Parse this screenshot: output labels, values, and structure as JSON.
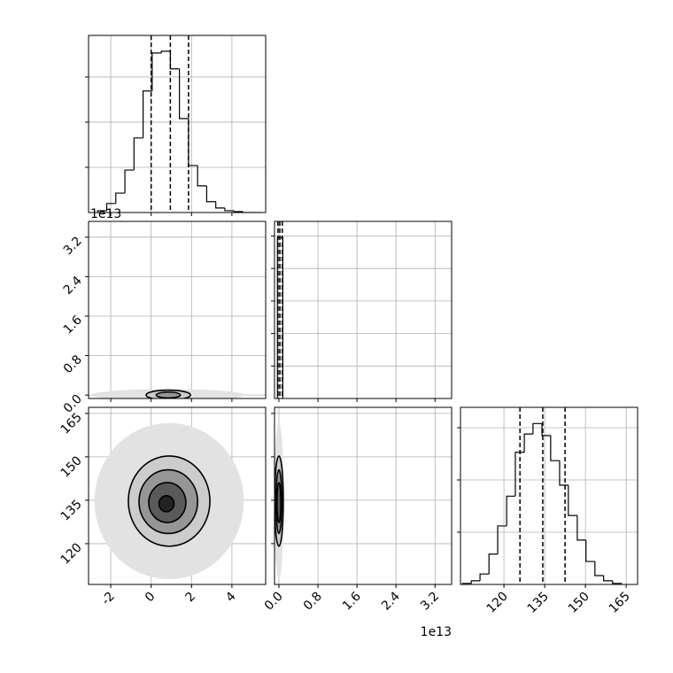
{
  "chart_data": [
    {
      "type": "histogram",
      "xlim": [
        -3.1,
        5.67
      ],
      "xticks": [
        -2,
        0,
        2,
        4
      ],
      "ylim": [
        0,
        3.92
      ],
      "yticks": [
        1,
        2,
        3
      ],
      "bins": [
        -2.65,
        -2.2,
        -1.75,
        -1.3,
        -0.85,
        -0.4,
        0.05,
        0.5,
        0.95,
        1.4,
        1.85,
        2.3,
        2.75,
        3.2,
        3.65,
        4.1,
        4.55,
        5.0,
        5.45
      ],
      "values": [
        0.04,
        0.2,
        0.43,
        0.94,
        1.65,
        2.69,
        3.53,
        3.57,
        3.18,
        2.08,
        1.04,
        0.59,
        0.24,
        0.1,
        0.04,
        0.02,
        0,
        0
      ],
      "quantiles": [
        0.0,
        0.95,
        1.85
      ],
      "color": "#000000"
    },
    {
      "type": "contour",
      "xlim": [
        -3.1,
        5.67
      ],
      "xticks": [
        -2,
        0,
        2,
        4
      ],
      "ylim": [
        -0.07,
        3.52
      ],
      "yticks": [
        {
          "value": 0,
          "label": "0.0"
        },
        0.8,
        1.6,
        2.4,
        3.2
      ],
      "yoffset": "1e13",
      "cloud": {
        "cx": 0.85,
        "cy": 0.0,
        "rx": 3.8,
        "ry": 0.12
      },
      "contours": [
        {
          "cx": 0.85,
          "cy": 0.0,
          "rx": 1.1,
          "ry": 0.1
        },
        {
          "cx": 0.85,
          "cy": 0.0,
          "rx": 0.6,
          "ry": 0.06
        }
      ]
    },
    {
      "type": "histogram",
      "xlim": [
        -0.09,
        3.54
      ],
      "xticks": [
        {
          "value": 0,
          "label": "0.0"
        },
        0.8,
        1.6,
        2.4,
        3.2
      ],
      "ylim": [
        0,
        5.45
      ],
      "yticks": [
        1,
        2,
        3,
        4,
        5
      ],
      "bins": [
        -0.03,
        0.08
      ],
      "values": [
        4.95
      ],
      "quantiles": [
        -0.02,
        0.02,
        0.07
      ],
      "color": "#000000"
    },
    {
      "type": "contour",
      "xlim": [
        -3.1,
        5.67
      ],
      "xticks": [
        -2,
        0,
        2,
        4
      ],
      "ylim": [
        105.9,
        167.1
      ],
      "yticks": [
        120,
        135,
        150,
        165
      ],
      "cloud": {
        "cx": 0.89,
        "cy": 134.7,
        "rx": 3.7,
        "ry": 27
      },
      "contours": [
        {
          "cx": 0.89,
          "cy": 134.7,
          "rx": 2.02,
          "ry": 15.6
        },
        {
          "cx": 0.85,
          "cy": 134.5,
          "rx": 1.45,
          "ry": 11
        },
        {
          "cx": 0.8,
          "cy": 134.2,
          "rx": 0.92,
          "ry": 6.9
        },
        {
          "cx": 0.76,
          "cy": 133.8,
          "rx": 0.37,
          "ry": 2.75
        }
      ]
    },
    {
      "type": "contour",
      "xlim": [
        -0.09,
        3.54
      ],
      "xticks": [
        {
          "value": 0,
          "label": "0.0"
        },
        0.8,
        1.6,
        2.4,
        3.2
      ],
      "ylim": [
        105.9,
        167.1
      ],
      "yticks": [
        120,
        135,
        150,
        165
      ],
      "xoffset": "1e13",
      "cloud": {
        "cx": 0.0,
        "cy": 134.7,
        "rx": 0.1,
        "ry": 27
      },
      "contours": [
        {
          "cx": 0.0,
          "cy": 134.7,
          "rx": 0.09,
          "ry": 15.6
        },
        {
          "cx": 0.0,
          "cy": 134.5,
          "rx": 0.06,
          "ry": 11
        },
        {
          "cx": 0.0,
          "cy": 134.2,
          "rx": 0.04,
          "ry": 6.9
        }
      ]
    },
    {
      "type": "histogram",
      "xlim": [
        104,
        169.2
      ],
      "xticks": [
        120,
        135,
        150,
        165
      ],
      "ylim": [
        0,
        3.39
      ],
      "yticks": [
        1,
        2,
        3
      ],
      "bins": [
        104.7,
        108.0,
        111.2,
        114.5,
        117.7,
        121.0,
        124.2,
        127.5,
        130.7,
        134.0,
        137.2,
        140.5,
        143.7,
        147.0,
        150.2,
        153.5,
        156.7,
        160.0,
        163.2
      ],
      "values": [
        0.02,
        0.07,
        0.2,
        0.58,
        1.12,
        1.69,
        2.53,
        2.88,
        3.08,
        2.85,
        2.37,
        1.9,
        1.32,
        0.85,
        0.44,
        0.17,
        0.07,
        0.02
      ],
      "quantiles": [
        125.9,
        134.3,
        142.5
      ],
      "color": "#000000"
    }
  ]
}
